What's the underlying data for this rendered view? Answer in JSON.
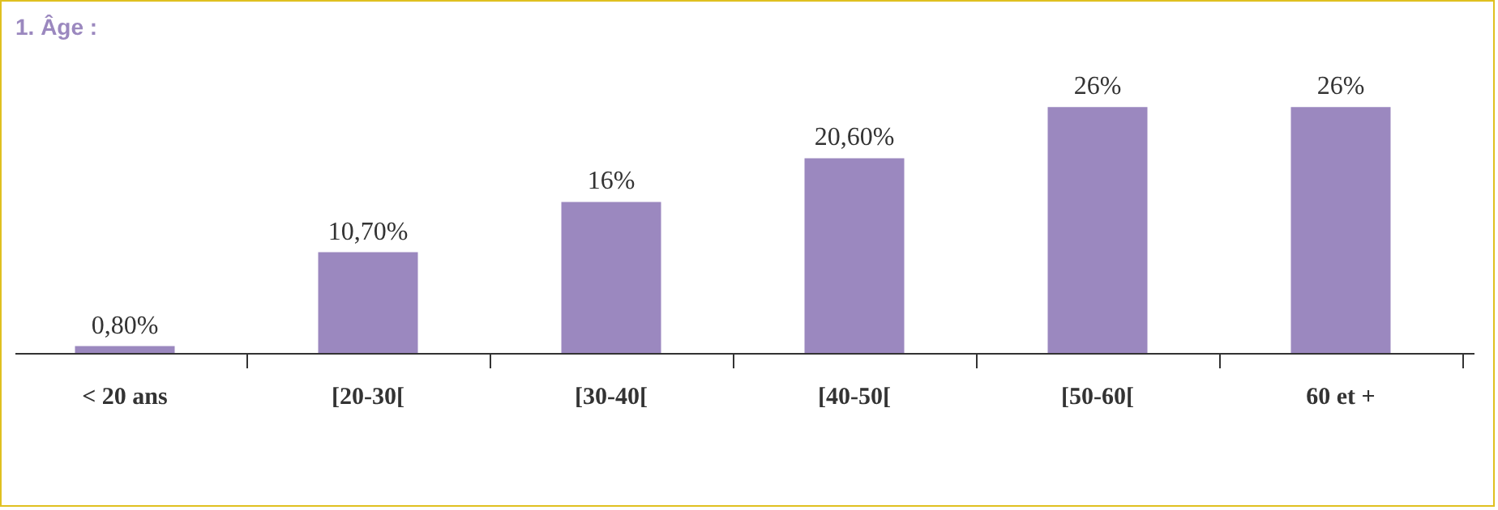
{
  "chart_data": {
    "type": "bar",
    "title": "1. Âge :",
    "categories": [
      "< 20 ans",
      "[20-30[",
      "[30-40[",
      "[40-50[",
      "[50-60[",
      "60 et +"
    ],
    "values": [
      0.8,
      10.7,
      16,
      20.6,
      26,
      26
    ],
    "value_labels": [
      "0,80%",
      "10,70%",
      "16%",
      "20,60%",
      "26%",
      "26%"
    ],
    "color": "#9b88bf"
  }
}
